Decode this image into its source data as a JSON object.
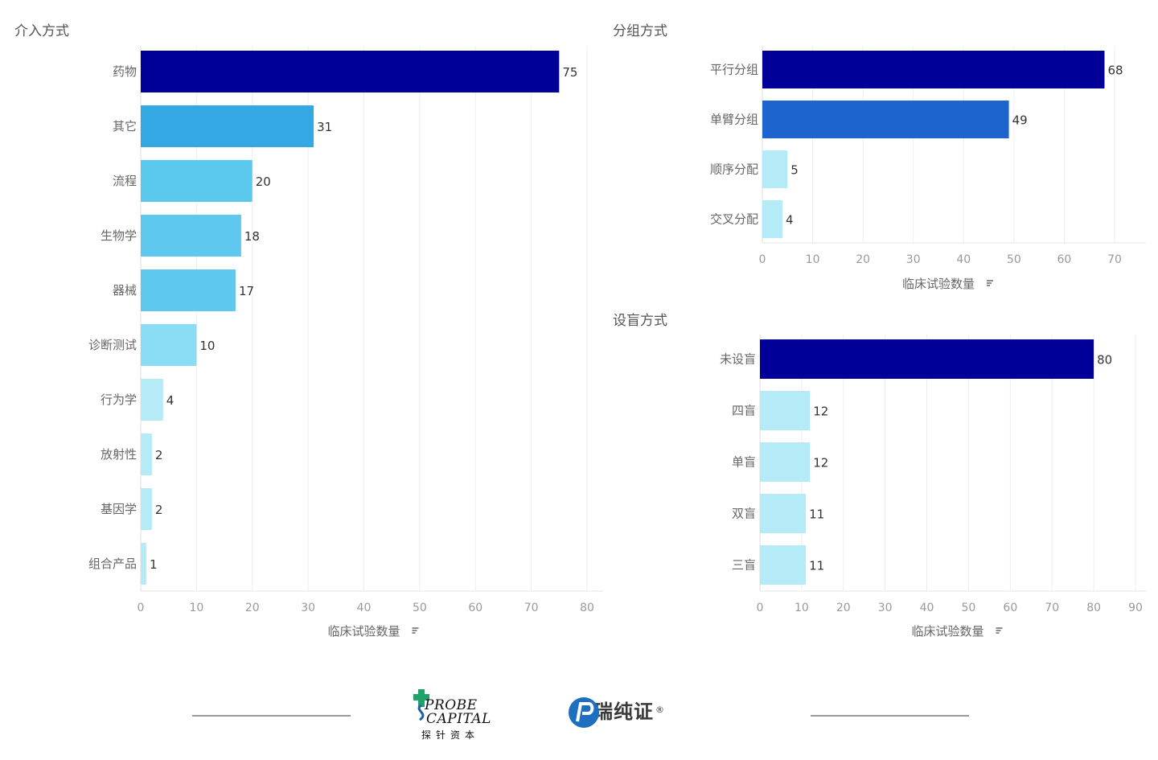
{
  "chart_data": [
    {
      "type": "bar",
      "orientation": "horizontal",
      "title": "介入方式",
      "xlabel": "临床试验数量",
      "xlim": [
        0,
        80
      ],
      "ticks": [
        0,
        10,
        20,
        30,
        40,
        50,
        60,
        70,
        80
      ],
      "categories": [
        "药物",
        "其它",
        "流程",
        "生物学",
        "器械",
        "诊断测试",
        "行为学",
        "放射性",
        "基因学",
        "组合产品"
      ],
      "values": [
        75,
        31,
        20,
        18,
        17,
        10,
        4,
        2,
        2,
        1
      ],
      "colors": [
        "#000099",
        "#33A8E3",
        "#5BC9EE",
        "#5EC8EE",
        "#5EC8EE",
        "#8ADDF4",
        "#B5EBF7",
        "#B5EBF7",
        "#B5EBF7",
        "#B5EBF7"
      ]
    },
    {
      "type": "bar",
      "orientation": "horizontal",
      "title": "分组方式",
      "xlabel": "临床试验数量",
      "xlim": [
        0,
        70
      ],
      "ticks": [
        0,
        10,
        20,
        30,
        40,
        50,
        60,
        70
      ],
      "categories": [
        "平行分组",
        "单臂分组",
        "顺序分配",
        "交叉分配"
      ],
      "values": [
        68,
        49,
        5,
        4
      ],
      "colors": [
        "#000099",
        "#1E64CE",
        "#B5EBF7",
        "#B5EBF7"
      ]
    },
    {
      "type": "bar",
      "orientation": "horizontal",
      "title": "设盲方式",
      "xlabel": "临床试验数量",
      "xlim": [
        0,
        90
      ],
      "ticks": [
        0,
        10,
        20,
        30,
        40,
        50,
        60,
        70,
        80,
        90
      ],
      "categories": [
        "未设盲",
        "四盲",
        "单盲",
        "双盲",
        "三盲"
      ],
      "values": [
        80,
        12,
        12,
        11,
        11
      ],
      "colors": [
        "#000099",
        "#B5EBF7",
        "#B5EBF7",
        "#B5EBF7",
        "#B5EBF7"
      ]
    }
  ],
  "footer": {
    "probe_logo": {
      "line1": "PROBE",
      "line2": "CAPITAL",
      "chinese": "探针资本",
      "accent": "#1FA36B"
    },
    "puri_logo": {
      "text": "普瑞纯证",
      "registered": "®",
      "accent": "#1E6FC0"
    }
  }
}
